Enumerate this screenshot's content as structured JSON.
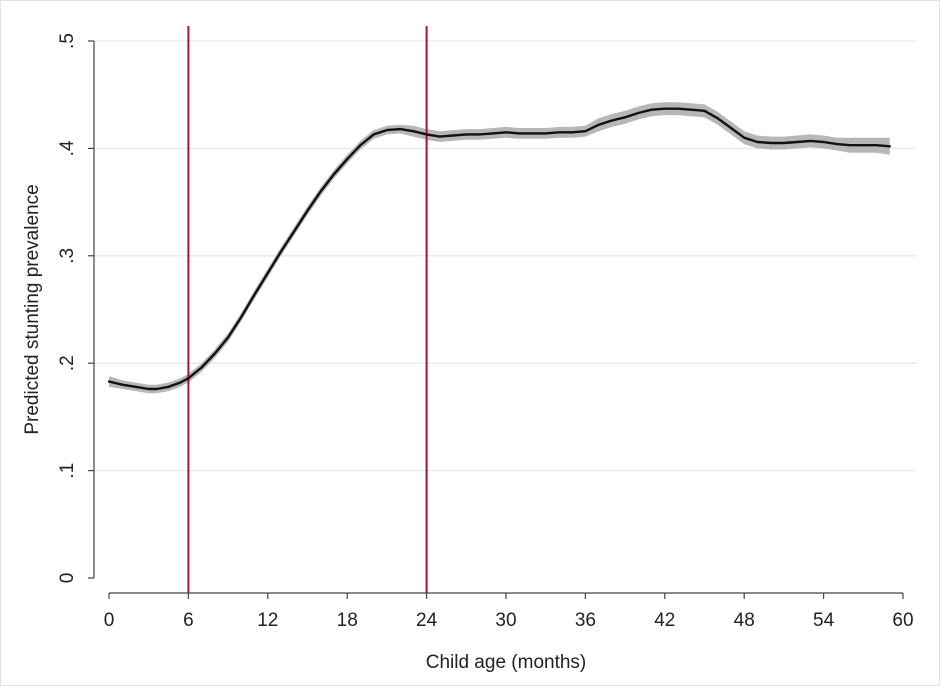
{
  "chart_data": {
    "type": "line",
    "title": "",
    "xlabel": "Child age (months)",
    "ylabel": "Predicted stunting prevalence",
    "xlim": [
      0,
      60
    ],
    "ylim": [
      0,
      0.5
    ],
    "x_ticks": [
      0,
      6,
      12,
      18,
      24,
      30,
      36,
      42,
      48,
      54,
      60
    ],
    "x_tick_labels": [
      "0",
      "6",
      "12",
      "18",
      "24",
      "30",
      "36",
      "42",
      "48",
      "54",
      "60"
    ],
    "y_ticks": [
      0,
      0.1,
      0.2,
      0.3,
      0.4,
      0.5
    ],
    "y_tick_labels": [
      "0",
      ".1",
      ".2",
      ".3",
      ".4",
      ".5"
    ],
    "grid": "horizontal",
    "reference_lines_x": [
      6,
      24
    ],
    "colors": {
      "line": "#111111",
      "band": "#b7b7b7",
      "reference": "#b0102a",
      "grid": "#e2ecee",
      "axis": "#444444"
    },
    "series": [
      {
        "x": [
          0,
          1,
          2,
          3,
          3.6,
          4.5,
          5.4,
          6,
          7,
          8,
          9,
          10,
          11,
          12,
          13,
          14,
          15,
          16,
          17,
          18,
          19,
          20,
          21,
          22,
          23,
          24,
          25,
          26,
          27,
          28,
          29,
          30,
          31,
          32,
          33,
          34,
          35,
          36,
          37,
          38,
          39,
          40,
          41,
          42,
          43,
          44,
          45,
          46,
          47,
          48,
          49,
          50,
          51,
          52,
          53,
          54,
          55,
          56,
          57,
          58,
          59
        ],
        "y": [
          0.183,
          0.18,
          0.178,
          0.176,
          0.176,
          0.178,
          0.182,
          0.186,
          0.196,
          0.209,
          0.224,
          0.243,
          0.264,
          0.284,
          0.304,
          0.323,
          0.342,
          0.36,
          0.376,
          0.39,
          0.403,
          0.413,
          0.417,
          0.418,
          0.416,
          0.413,
          0.411,
          0.412,
          0.413,
          0.413,
          0.414,
          0.415,
          0.414,
          0.414,
          0.414,
          0.415,
          0.415,
          0.416,
          0.422,
          0.426,
          0.429,
          0.433,
          0.436,
          0.437,
          0.437,
          0.436,
          0.435,
          0.428,
          0.419,
          0.41,
          0.406,
          0.405,
          0.405,
          0.406,
          0.407,
          0.406,
          0.404,
          0.403,
          0.403,
          0.403,
          0.402
        ],
        "ci_halfwidth": [
          0.005,
          0.004,
          0.004,
          0.004,
          0.004,
          0.004,
          0.004,
          0.004,
          0.004,
          0.004,
          0.004,
          0.004,
          0.004,
          0.004,
          0.004,
          0.004,
          0.004,
          0.004,
          0.004,
          0.004,
          0.004,
          0.004,
          0.004,
          0.004,
          0.005,
          0.005,
          0.005,
          0.005,
          0.005,
          0.005,
          0.005,
          0.005,
          0.005,
          0.005,
          0.005,
          0.005,
          0.005,
          0.005,
          0.006,
          0.006,
          0.006,
          0.006,
          0.006,
          0.006,
          0.006,
          0.006,
          0.006,
          0.006,
          0.006,
          0.006,
          0.006,
          0.006,
          0.006,
          0.006,
          0.006,
          0.006,
          0.006,
          0.007,
          0.007,
          0.007,
          0.008
        ]
      }
    ]
  }
}
